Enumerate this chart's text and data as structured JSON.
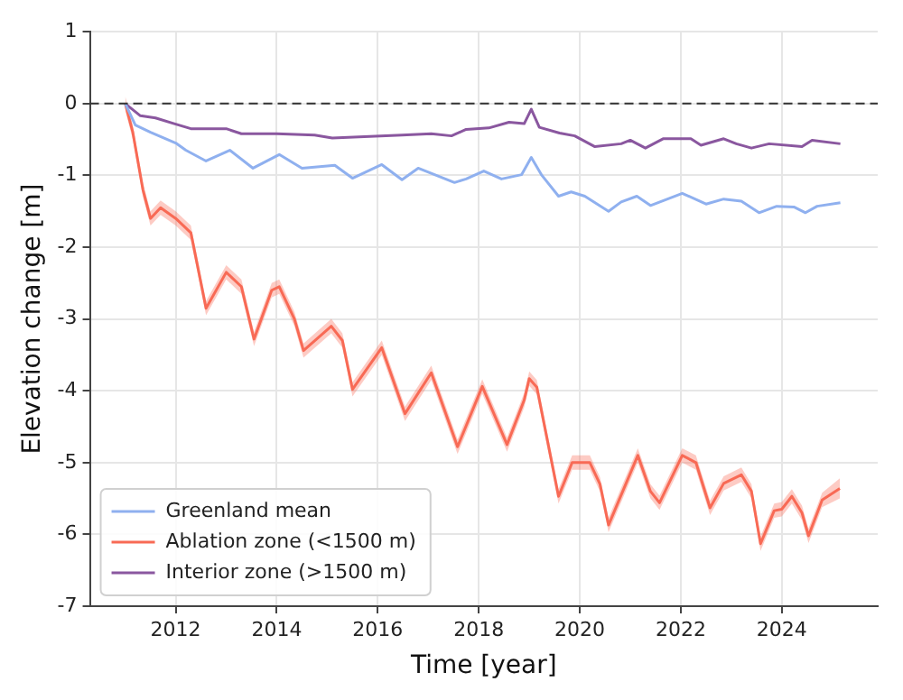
{
  "chart_data": {
    "type": "line",
    "xlabel": "Time [year]",
    "ylabel": "Elevation change [m]",
    "xlim": [
      2010.3,
      2025.9
    ],
    "xticks": [
      2012,
      2014,
      2016,
      2018,
      2020,
      2022,
      2024
    ],
    "ylim": [
      -7,
      1
    ],
    "yticks": [
      -7,
      -6,
      -5,
      -4,
      -3,
      -2,
      -1,
      0,
      1
    ],
    "grid": true,
    "legend": "bottom left",
    "line_style": "solid",
    "marker": "none",
    "ref_lines": [
      {
        "axis": "y",
        "value": 0,
        "color": "#333333",
        "line_style": "dashed"
      }
    ],
    "series": [
      {
        "name": "Greenland mean",
        "color": "#8fb0ef",
        "x": [
          2011.0,
          2011.2,
          2011.5,
          2012.0,
          2012.2,
          2012.6,
          2013.07,
          2013.53,
          2014.05,
          2014.5,
          2015.15,
          2015.5,
          2016.08,
          2016.48,
          2016.8,
          2017.52,
          2017.75,
          2018.1,
          2018.45,
          2018.85,
          2019.04,
          2019.25,
          2019.58,
          2019.83,
          2020.1,
          2020.57,
          2020.82,
          2021.13,
          2021.4,
          2022.03,
          2022.5,
          2022.85,
          2023.2,
          2023.55,
          2023.9,
          2024.24,
          2024.47,
          2024.7,
          2025.16
        ],
        "values": [
          0,
          -0.3,
          -0.4,
          -0.55,
          -0.65,
          -0.8,
          -0.65,
          -0.9,
          -0.71,
          -0.9,
          -0.86,
          -1.04,
          -0.85,
          -1.06,
          -0.9,
          -1.1,
          -1.05,
          -0.94,
          -1.05,
          -0.99,
          -0.75,
          -1.0,
          -1.29,
          -1.23,
          -1.29,
          -1.5,
          -1.37,
          -1.29,
          -1.42,
          -1.25,
          -1.4,
          -1.33,
          -1.36,
          -1.52,
          -1.43,
          -1.44,
          -1.52,
          -1.43,
          -1.38
        ]
      },
      {
        "name": "Ablation zone (<1500 m)",
        "color": "#f86a55",
        "x": [
          2011.0,
          2011.15,
          2011.35,
          2011.5,
          2011.7,
          2012.0,
          2012.3,
          2012.6,
          2013.0,
          2013.3,
          2013.55,
          2013.9,
          2014.05,
          2014.35,
          2014.53,
          2015.08,
          2015.3,
          2015.5,
          2016.08,
          2016.54,
          2017.06,
          2017.58,
          2018.07,
          2018.56,
          2018.9,
          2019.0,
          2019.15,
          2019.58,
          2019.85,
          2020.2,
          2020.4,
          2020.57,
          2021.15,
          2021.4,
          2021.58,
          2022.03,
          2022.3,
          2022.58,
          2022.85,
          2023.2,
          2023.4,
          2023.58,
          2023.85,
          2024.0,
          2024.2,
          2024.4,
          2024.53,
          2024.8,
          2025.15
        ],
        "values": [
          0,
          -0.4,
          -1.2,
          -1.6,
          -1.45,
          -1.6,
          -1.8,
          -2.85,
          -2.35,
          -2.55,
          -3.28,
          -2.6,
          -2.55,
          -3.0,
          -3.44,
          -3.1,
          -3.3,
          -3.98,
          -3.4,
          -4.32,
          -3.75,
          -4.78,
          -3.94,
          -4.75,
          -4.13,
          -3.83,
          -3.95,
          -5.47,
          -5.0,
          -5.0,
          -5.3,
          -5.87,
          -4.9,
          -5.4,
          -5.56,
          -4.9,
          -5.0,
          -5.63,
          -5.29,
          -5.17,
          -5.4,
          -6.13,
          -5.67,
          -5.65,
          -5.47,
          -5.7,
          -6.02,
          -5.52,
          -5.36
        ],
        "lower": [
          -0.1,
          -0.5,
          -1.3,
          -1.7,
          -1.55,
          -1.7,
          -1.9,
          -2.95,
          -2.45,
          -2.65,
          -3.38,
          -2.7,
          -2.65,
          -3.1,
          -3.54,
          -3.2,
          -3.4,
          -4.08,
          -3.5,
          -4.42,
          -3.85,
          -4.88,
          -4.04,
          -4.85,
          -4.23,
          -3.93,
          -4.05,
          -5.57,
          -5.1,
          -5.1,
          -5.4,
          -5.97,
          -5.0,
          -5.5,
          -5.66,
          -5.0,
          -5.1,
          -5.73,
          -5.39,
          -5.27,
          -5.5,
          -6.23,
          -5.77,
          -5.75,
          -5.57,
          -5.8,
          -6.12,
          -5.62,
          -5.5
        ],
        "upper": [
          0.1,
          -0.3,
          -1.1,
          -1.5,
          -1.35,
          -1.5,
          -1.7,
          -2.75,
          -2.25,
          -2.45,
          -3.18,
          -2.5,
          -2.45,
          -2.9,
          -3.34,
          -3.0,
          -3.2,
          -3.88,
          -3.3,
          -4.22,
          -3.65,
          -4.68,
          -3.84,
          -4.65,
          -4.03,
          -3.73,
          -3.85,
          -5.37,
          -4.9,
          -4.9,
          -5.2,
          -5.77,
          -4.8,
          -5.3,
          -5.46,
          -4.8,
          -4.9,
          -5.53,
          -5.19,
          -5.07,
          -5.3,
          -6.03,
          -5.57,
          -5.55,
          -5.37,
          -5.6,
          -5.92,
          -5.42,
          -5.22
        ]
      },
      {
        "name": "Interior zone (>1500 m)",
        "color": "#8a579f",
        "x": [
          2011.0,
          2011.3,
          2011.6,
          2011.97,
          2012.3,
          2013.0,
          2013.3,
          2014.0,
          2014.75,
          2015.1,
          2016.48,
          2017.06,
          2017.46,
          2017.75,
          2018.2,
          2018.6,
          2018.9,
          2019.04,
          2019.2,
          2019.6,
          2019.9,
          2020.3,
          2020.82,
          2021.0,
          2021.3,
          2021.65,
          2022.2,
          2022.4,
          2022.85,
          2023.1,
          2023.4,
          2023.75,
          2024.4,
          2024.6,
          2025.16
        ],
        "values": [
          0,
          -0.17,
          -0.2,
          -0.28,
          -0.35,
          -0.35,
          -0.42,
          -0.42,
          -0.44,
          -0.48,
          -0.44,
          -0.42,
          -0.45,
          -0.36,
          -0.34,
          -0.26,
          -0.28,
          -0.08,
          -0.33,
          -0.41,
          -0.45,
          -0.6,
          -0.56,
          -0.51,
          -0.62,
          -0.49,
          -0.49,
          -0.58,
          -0.49,
          -0.56,
          -0.62,
          -0.56,
          -0.6,
          -0.51,
          -0.56
        ]
      }
    ]
  }
}
